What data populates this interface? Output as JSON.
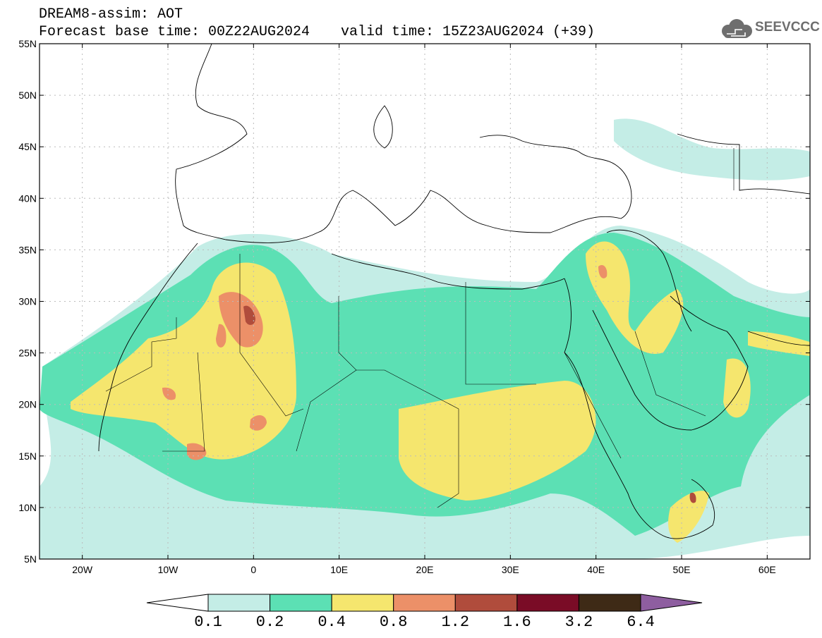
{
  "title": {
    "line1": "DREAM8-assim: AOT",
    "base_time": "Forecast base time: 00Z22AUG2024",
    "valid_time": "valid time: 15Z23AUG2024 (+39)"
  },
  "logo": {
    "text": "SEEVCCC",
    "icon": "cloud-logo-icon"
  },
  "map": {
    "lon_range": [
      -25,
      65
    ],
    "lat_range": [
      5,
      55
    ],
    "lon_ticks": [
      {
        "value": -20,
        "label": "20W"
      },
      {
        "value": -10,
        "label": "10W"
      },
      {
        "value": 0,
        "label": "0"
      },
      {
        "value": 10,
        "label": "10E"
      },
      {
        "value": 20,
        "label": "20E"
      },
      {
        "value": 30,
        "label": "30E"
      },
      {
        "value": 40,
        "label": "40E"
      },
      {
        "value": 50,
        "label": "50E"
      },
      {
        "value": 60,
        "label": "60E"
      }
    ],
    "lat_ticks": [
      {
        "value": 55,
        "label": "55N"
      },
      {
        "value": 50,
        "label": "50N"
      },
      {
        "value": 45,
        "label": "45N"
      },
      {
        "value": 40,
        "label": "40N"
      },
      {
        "value": 35,
        "label": "35N"
      },
      {
        "value": 30,
        "label": "30N"
      },
      {
        "value": 25,
        "label": "25N"
      },
      {
        "value": 20,
        "label": "20N"
      },
      {
        "value": 15,
        "label": "15N"
      },
      {
        "value": 10,
        "label": "10N"
      },
      {
        "value": 5,
        "label": "5N"
      }
    ],
    "grid": true
  },
  "colorbar": {
    "levels": [
      "0.1",
      "0.2",
      "0.4",
      "0.8",
      "1.2",
      "1.6",
      "3.2",
      "6.4"
    ],
    "colors": [
      "#ffffff",
      "#c4ede6",
      "#5ce0b4",
      "#f5e66e",
      "#ec9068",
      "#b04c3c",
      "#7a0c26",
      "#3e2a16",
      "#8e5ea0"
    ]
  }
}
